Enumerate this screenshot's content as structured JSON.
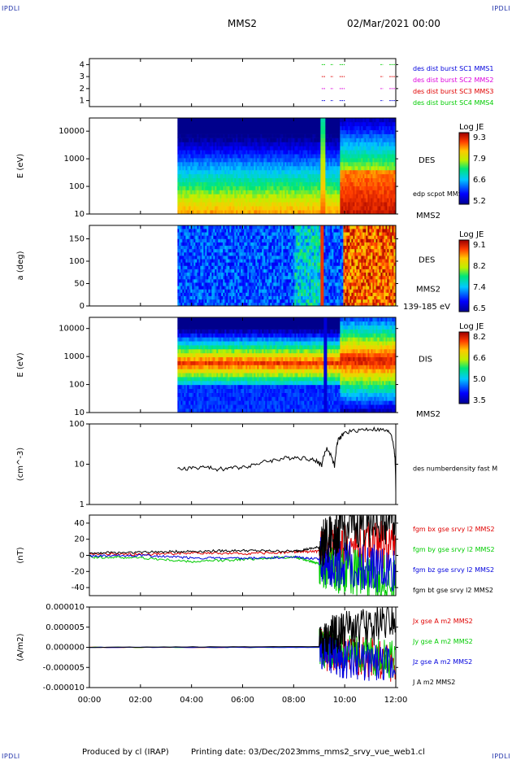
{
  "header": {
    "corner_tl": "IPDLI",
    "corner_tr": "IPDLI",
    "corner_bl": "IPDLI",
    "corner_br": "IPDLI",
    "spacecraft": "MMS2",
    "date": "02/Mar/2021 00:00"
  },
  "footer": {
    "produced": "Produced by cl (IRAP)",
    "printing": "Printing date: 03/Dec/2023",
    "file": "mms_mms2_srvy_vue_web1.cl"
  },
  "colors": {
    "black": "#000000",
    "red": "#e00000",
    "green": "#00cc00",
    "blue": "#0000dd",
    "magenta": "#dd00dd"
  },
  "chart_data": [
    {
      "type": "line",
      "panel": "availability",
      "ylim": [
        0.5,
        4.5
      ],
      "yticks": [
        "1",
        "2",
        "3",
        "4"
      ],
      "legend": [
        {
          "label": "des dist burst SC1 MMS1",
          "color": "#0000dd"
        },
        {
          "label": "des dist burst SC2 MMS2",
          "color": "#dd00dd"
        },
        {
          "label": "des dist burst SC3 MMS3",
          "color": "#e00000"
        },
        {
          "label": "des dist burst SC4 MMS4",
          "color": "#00cc00"
        }
      ],
      "series": [
        {
          "level": 4,
          "color": "#00cc00",
          "intervals_h": [
            [
              9.1,
              9.25
            ],
            [
              9.45,
              9.55
            ],
            [
              9.8,
              10.0
            ],
            [
              11.4,
              11.5
            ],
            [
              11.75,
              12.0
            ]
          ]
        },
        {
          "level": 3,
          "color": "#e00000",
          "intervals_h": [
            [
              9.1,
              9.25
            ],
            [
              9.45,
              9.55
            ],
            [
              9.8,
              10.0
            ],
            [
              11.4,
              11.5
            ],
            [
              11.75,
              12.0
            ]
          ]
        },
        {
          "level": 2,
          "color": "#dd00dd",
          "intervals_h": [
            [
              9.1,
              9.25
            ],
            [
              9.45,
              9.55
            ],
            [
              9.8,
              10.0
            ],
            [
              11.4,
              11.5
            ],
            [
              11.75,
              12.0
            ]
          ]
        },
        {
          "level": 1,
          "color": "#0000dd",
          "intervals_h": [
            [
              9.1,
              9.25
            ],
            [
              9.45,
              9.55
            ],
            [
              9.8,
              10.0
            ],
            [
              11.4,
              11.5
            ],
            [
              11.75,
              12.0
            ]
          ]
        }
      ]
    },
    {
      "type": "heatmap",
      "panel": "des_energy",
      "ylabel": "E (eV)",
      "yscale": "log",
      "ylim": [
        10,
        30000
      ],
      "yticks": [
        "10",
        "100",
        "1000",
        "10000"
      ],
      "data_start_h": 3.45,
      "side_labels": [
        "DES",
        "edp scpot MMS2",
        "MMS2"
      ],
      "colorbar": {
        "title": "Log JE",
        "ticks": [
          "9.3",
          "7.9",
          "6.6",
          "5.2"
        ]
      }
    },
    {
      "type": "heatmap",
      "panel": "des_pitch",
      "ylabel": "a (deg)",
      "ylim": [
        0,
        180
      ],
      "yticks": [
        "0",
        "50",
        "100",
        "150"
      ],
      "data_start_h": 3.45,
      "side_labels": [
        "DES",
        "MMS2",
        "139-185 eV"
      ],
      "colorbar": {
        "title": "Log JE",
        "ticks": [
          "9.1",
          "8.2",
          "7.4",
          "6.5"
        ]
      }
    },
    {
      "type": "heatmap",
      "panel": "dis_energy",
      "ylabel": "E (eV)",
      "yscale": "log",
      "ylim": [
        10,
        25000
      ],
      "yticks": [
        "10",
        "100",
        "1000",
        "10000"
      ],
      "data_start_h": 3.45,
      "side_labels": [
        "DIS",
        "MMS2"
      ],
      "colorbar": {
        "title": "Log JE",
        "ticks": [
          "8.2",
          "6.6",
          "5.0",
          "3.5"
        ]
      }
    },
    {
      "type": "line",
      "panel": "density",
      "ylabel": "(cm^-3)",
      "yscale": "log",
      "ylim": [
        1,
        100
      ],
      "yticks": [
        "1",
        "10",
        "100"
      ],
      "series": [
        {
          "name": "des numberdensity fast M",
          "color": "#000000",
          "x": [
            3.45,
            4.0,
            4.5,
            5.0,
            5.5,
            6.0,
            6.5,
            7.0,
            7.5,
            8.0,
            8.5,
            8.9,
            9.1,
            9.3,
            9.6,
            9.75,
            10.0,
            10.5,
            11.0,
            11.5,
            11.8,
            11.95,
            12.0
          ],
          "y": [
            7.5,
            8.0,
            8.5,
            7.5,
            8.0,
            8.5,
            10.0,
            12.0,
            13.5,
            15.0,
            14.0,
            12.0,
            9.5,
            25,
            9.0,
            40,
            60,
            70,
            75,
            70,
            60,
            20,
            2
          ]
        }
      ]
    },
    {
      "type": "line",
      "panel": "magnetic_field",
      "ylabel": "(nT)",
      "ylim": [
        -50,
        50
      ],
      "yticks": [
        "-40",
        "-20",
        "0",
        "20",
        "40"
      ],
      "series": [
        {
          "name": "fgm bx gse srvy l2 MMS2",
          "color": "#e00000",
          "x": [
            0,
            2,
            4,
            6,
            8,
            9,
            9.5,
            10,
            11,
            12
          ],
          "y": [
            2,
            1,
            3,
            2,
            4,
            5,
            8,
            10,
            12,
            15
          ]
        },
        {
          "name": "fgm by gse srvy l2 MMS2",
          "color": "#00cc00",
          "x": [
            0,
            2,
            4,
            6,
            8,
            9,
            9.5,
            10,
            11,
            12
          ],
          "y": [
            -2,
            -3,
            -8,
            -5,
            -2,
            -10,
            -15,
            -20,
            -25,
            -30
          ]
        },
        {
          "name": "fgm bz gse srvy l2 MMS2",
          "color": "#0000dd",
          "x": [
            0,
            2,
            4,
            6,
            8,
            9,
            9.5,
            10,
            11,
            12
          ],
          "y": [
            -1,
            0,
            -3,
            -4,
            -2,
            -5,
            -10,
            -12,
            -15,
            -20
          ]
        },
        {
          "name": "fgm bt gse srvy l2 MMS2",
          "color": "#000000",
          "x": [
            0,
            2,
            4,
            6,
            8,
            9,
            9.5,
            10,
            11,
            12
          ],
          "y": [
            3,
            4,
            5,
            6,
            5,
            10,
            25,
            35,
            40,
            45
          ]
        }
      ]
    },
    {
      "type": "line",
      "panel": "current_density",
      "ylabel": "(A/m2)",
      "ylim": [
        -1e-05,
        1e-05
      ],
      "yticks": [
        "-0.000010",
        "-0.000005",
        "0.000000",
        "0.000005",
        "0.000010"
      ],
      "series": [
        {
          "name": "Jx gse A m2 MMS2",
          "color": "#e00000",
          "x": [
            0,
            9,
            9.5,
            10,
            11,
            12
          ],
          "y": [
            0,
            0,
            -1.5e-06,
            -2e-06,
            -2.5e-06,
            -4e-06
          ]
        },
        {
          "name": "Jy gse A m2 MMS2",
          "color": "#00cc00",
          "x": [
            0,
            9,
            9.5,
            10,
            11,
            12
          ],
          "y": [
            0,
            0,
            -1e-06,
            -1.5e-06,
            -2e-06,
            -3e-06
          ]
        },
        {
          "name": "Jz gse A m2 MMS2",
          "color": "#0000dd",
          "x": [
            0,
            9,
            9.5,
            10,
            11,
            12
          ],
          "y": [
            0,
            0,
            -2e-06,
            -3e-06,
            -3.5e-06,
            -5e-06
          ]
        },
        {
          "name": "J A m2 MMS2",
          "color": "#000000",
          "x": [
            0,
            9,
            9.5,
            10,
            11,
            12
          ],
          "y": [
            0,
            2e-07,
            3e-06,
            4e-06,
            5e-06,
            8e-06
          ]
        }
      ]
    }
  ],
  "time_axis": {
    "xlim_h": [
      0,
      12
    ],
    "ticks": [
      "00:00",
      "02:00",
      "04:00",
      "06:00",
      "08:00",
      "10:00",
      "12:00"
    ]
  }
}
